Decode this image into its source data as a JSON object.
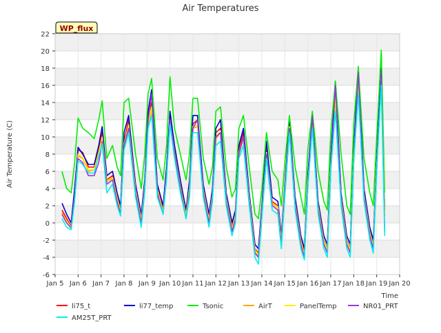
{
  "chart_data": {
    "type": "line",
    "title": "Air Temperatures",
    "xlabel": "Time",
    "ylabel": "Air Temperature (C)",
    "badge": "WP_flux",
    "xlim": [
      5,
      20
    ],
    "ylim": [
      -6,
      22
    ],
    "x_ticks": [
      5,
      6,
      7,
      8,
      9,
      10,
      11,
      12,
      13,
      14,
      15,
      16,
      17,
      18,
      19,
      20
    ],
    "x_tick_labels": [
      "Jan 5",
      "Jan 6",
      "Jan 7",
      "Jan 8",
      "Jan 9",
      "Jan 10",
      "Jan 11",
      "Jan 12",
      "Jan 13",
      "Jan 14",
      "Jan 15",
      "Jan 16",
      "Jan 17",
      "Jan 18",
      "Jan 19",
      "Jan 20"
    ],
    "y_ticks": [
      -6,
      -4,
      -2,
      0,
      2,
      4,
      6,
      8,
      10,
      12,
      14,
      16,
      18,
      20,
      22
    ],
    "grid": true,
    "legend_position": "bottom",
    "x": [
      5.3,
      5.5,
      5.7,
      5.85,
      6.0,
      6.2,
      6.45,
      6.7,
      6.9,
      7.05,
      7.25,
      7.5,
      7.7,
      7.85,
      8.0,
      8.2,
      8.5,
      8.75,
      8.9,
      9.05,
      9.2,
      9.45,
      9.7,
      9.85,
      10.0,
      10.2,
      10.45,
      10.7,
      10.85,
      11.0,
      11.2,
      11.45,
      11.7,
      11.85,
      12.0,
      12.2,
      12.45,
      12.7,
      12.85,
      13.0,
      13.2,
      13.45,
      13.7,
      13.85,
      14.0,
      14.2,
      14.45,
      14.7,
      14.85,
      15.0,
      15.2,
      15.45,
      15.7,
      15.85,
      16.0,
      16.2,
      16.45,
      16.7,
      16.85,
      17.0,
      17.2,
      17.45,
      17.7,
      17.85,
      18.0,
      18.2,
      18.45,
      18.7,
      18.85,
      19.0,
      19.2,
      19.35
    ],
    "series": [
      {
        "name": "li75_t",
        "color": "#ff0000",
        "values": [
          1.5,
          0.5,
          -0.4,
          3.5,
          8.5,
          8.2,
          6.5,
          6.5,
          8.5,
          10.5,
          5.0,
          5.5,
          3.0,
          1.5,
          9.5,
          12.0,
          4.0,
          0.5,
          4.5,
          12.0,
          14.0,
          4.0,
          1.5,
          6.0,
          12.5,
          8.5,
          4.5,
          1.0,
          4.5,
          11.5,
          12.0,
          4.0,
          0.5,
          3.5,
          10.5,
          11.0,
          3.0,
          -0.5,
          1.0,
          8.5,
          10.5,
          3.0,
          -3.0,
          -3.5,
          1.5,
          8.5,
          2.5,
          2.0,
          -2.0,
          4.0,
          11.5,
          2.5,
          -2.0,
          -3.5,
          5.0,
          12.0,
          2.0,
          -2.0,
          -3.0,
          7.0,
          15.5,
          3.0,
          -2.0,
          -3.0,
          8.0,
          17.0,
          3.5,
          -1.0,
          -2.5,
          7.0,
          17.0,
          1.0
        ]
      },
      {
        "name": "li77_temp",
        "color": "#0000cc",
        "values": [
          2.3,
          1.0,
          0.0,
          4.0,
          8.8,
          8.0,
          6.8,
          6.8,
          9.0,
          11.2,
          5.5,
          6.0,
          3.5,
          2.0,
          10.5,
          12.5,
          4.5,
          1.0,
          5.0,
          13.0,
          15.5,
          4.5,
          2.0,
          6.5,
          13.0,
          9.0,
          5.0,
          1.5,
          5.0,
          12.5,
          12.5,
          4.5,
          1.0,
          4.0,
          11.0,
          12.0,
          3.5,
          0.0,
          1.5,
          9.0,
          11.0,
          3.5,
          -2.5,
          -3.0,
          2.0,
          9.5,
          3.0,
          2.5,
          -1.5,
          4.5,
          12.0,
          3.0,
          -1.5,
          -3.0,
          5.5,
          12.5,
          2.5,
          -1.5,
          -2.5,
          7.5,
          16.5,
          3.5,
          -1.5,
          -2.5,
          8.5,
          18.0,
          4.0,
          -0.5,
          -2.0,
          7.5,
          18.0,
          1.5
        ]
      },
      {
        "name": "Tsonic",
        "color": "#00ee00",
        "values": [
          6.0,
          4.0,
          3.5,
          7.0,
          12.2,
          11.0,
          10.5,
          9.8,
          12.0,
          14.2,
          7.5,
          9.0,
          6.5,
          5.5,
          14.0,
          14.5,
          8.0,
          4.0,
          8.0,
          15.0,
          16.8,
          7.5,
          5.0,
          9.0,
          17.0,
          11.0,
          8.0,
          5.0,
          8.0,
          14.5,
          14.5,
          7.5,
          4.5,
          6.5,
          13.0,
          13.5,
          6.5,
          3.0,
          4.0,
          11.0,
          12.5,
          6.5,
          1.0,
          0.5,
          4.0,
          10.5,
          6.0,
          5.0,
          2.0,
          7.0,
          12.5,
          6.5,
          3.0,
          1.0,
          8.5,
          13.0,
          6.0,
          2.5,
          1.5,
          10.5,
          16.5,
          8.0,
          2.0,
          1.0,
          11.5,
          18.2,
          7.5,
          3.5,
          2.0,
          10.0,
          20.1,
          3.5
        ]
      },
      {
        "name": "AirT",
        "color": "#ffa500",
        "values": [
          1.2,
          0.3,
          -0.5,
          3.0,
          7.8,
          7.5,
          6.0,
          6.2,
          8.0,
          9.8,
          4.8,
          5.2,
          2.8,
          1.2,
          9.0,
          11.2,
          3.8,
          0.3,
          4.2,
          11.5,
          13.0,
          3.8,
          1.2,
          5.5,
          11.8,
          8.0,
          4.2,
          0.8,
          4.0,
          11.0,
          11.2,
          3.8,
          0.3,
          3.2,
          9.8,
          10.5,
          2.8,
          -0.8,
          0.8,
          8.0,
          9.8,
          2.8,
          -3.2,
          -3.8,
          1.2,
          8.0,
          2.2,
          1.8,
          -2.2,
          3.8,
          11.0,
          2.2,
          -2.2,
          -3.8,
          4.5,
          11.5,
          1.8,
          -2.2,
          -3.2,
          6.5,
          14.5,
          2.8,
          -2.2,
          -3.2,
          7.5,
          16.0,
          3.2,
          -1.2,
          -2.8,
          6.5,
          16.5,
          0.8
        ]
      },
      {
        "name": "PanelTemp",
        "color": "#ffee00",
        "values": [
          1.0,
          0.2,
          -0.6,
          3.0,
          8.0,
          7.6,
          6.2,
          6.2,
          8.2,
          10.0,
          4.9,
          5.3,
          2.9,
          1.3,
          9.2,
          11.4,
          3.9,
          0.4,
          4.3,
          11.8,
          13.5,
          3.9,
          1.3,
          5.6,
          12.0,
          8.2,
          4.3,
          0.9,
          4.1,
          11.2,
          11.4,
          3.9,
          0.4,
          3.3,
          10.0,
          10.7,
          2.9,
          -0.7,
          0.9,
          8.2,
          10.0,
          2.9,
          -3.1,
          -3.7,
          1.3,
          8.2,
          2.3,
          1.9,
          -2.1,
          3.9,
          11.2,
          2.3,
          -2.1,
          -3.7,
          4.6,
          11.7,
          1.9,
          -2.1,
          -3.1,
          6.6,
          14.8,
          2.9,
          -2.1,
          -3.1,
          7.6,
          16.3,
          3.3,
          -1.1,
          -2.7,
          6.6,
          16.8,
          0.9
        ]
      },
      {
        "name": "NR01_PRT",
        "color": "#9933dd",
        "values": [
          1.0,
          0.0,
          -0.6,
          3.0,
          7.5,
          7.0,
          5.5,
          5.5,
          7.0,
          9.5,
          4.5,
          5.0,
          2.5,
          1.0,
          9.0,
          11.0,
          3.5,
          0.0,
          4.0,
          12.0,
          15.0,
          3.5,
          1.0,
          5.5,
          12.0,
          8.0,
          4.0,
          0.5,
          3.5,
          11.0,
          12.0,
          3.5,
          0.0,
          3.0,
          10.0,
          10.5,
          2.5,
          -1.0,
          0.5,
          8.0,
          10.0,
          2.5,
          -3.5,
          -4.0,
          1.0,
          8.0,
          2.0,
          1.5,
          -2.5,
          3.5,
          11.0,
          2.0,
          -2.5,
          -4.0,
          4.0,
          12.5,
          1.5,
          -2.5,
          -3.5,
          6.0,
          16.0,
          2.5,
          -2.5,
          -3.5,
          7.0,
          17.5,
          3.0,
          -1.5,
          -3.0,
          6.0,
          17.5,
          -1.0
        ]
      },
      {
        "name": "AM25T_PRT",
        "color": "#00eeee",
        "values": [
          0.5,
          -0.5,
          -0.8,
          2.5,
          7.2,
          6.8,
          5.8,
          5.8,
          7.8,
          9.2,
          3.5,
          4.5,
          2.0,
          0.8,
          8.5,
          10.5,
          3.0,
          -0.5,
          3.5,
          11.0,
          12.5,
          3.0,
          1.0,
          5.0,
          11.5,
          7.5,
          3.5,
          0.5,
          3.0,
          10.5,
          10.5,
          3.0,
          -0.5,
          2.5,
          9.0,
          9.5,
          2.0,
          -1.5,
          0.0,
          7.5,
          9.0,
          2.0,
          -4.0,
          -4.8,
          0.5,
          7.5,
          1.5,
          1.0,
          -3.0,
          3.0,
          10.5,
          1.5,
          -3.0,
          -4.3,
          4.0,
          11.0,
          1.0,
          -3.0,
          -4.0,
          6.0,
          13.0,
          2.0,
          -3.0,
          -4.0,
          7.0,
          15.0,
          2.5,
          -2.0,
          -3.5,
          6.0,
          16.0,
          -1.5
        ]
      }
    ]
  }
}
